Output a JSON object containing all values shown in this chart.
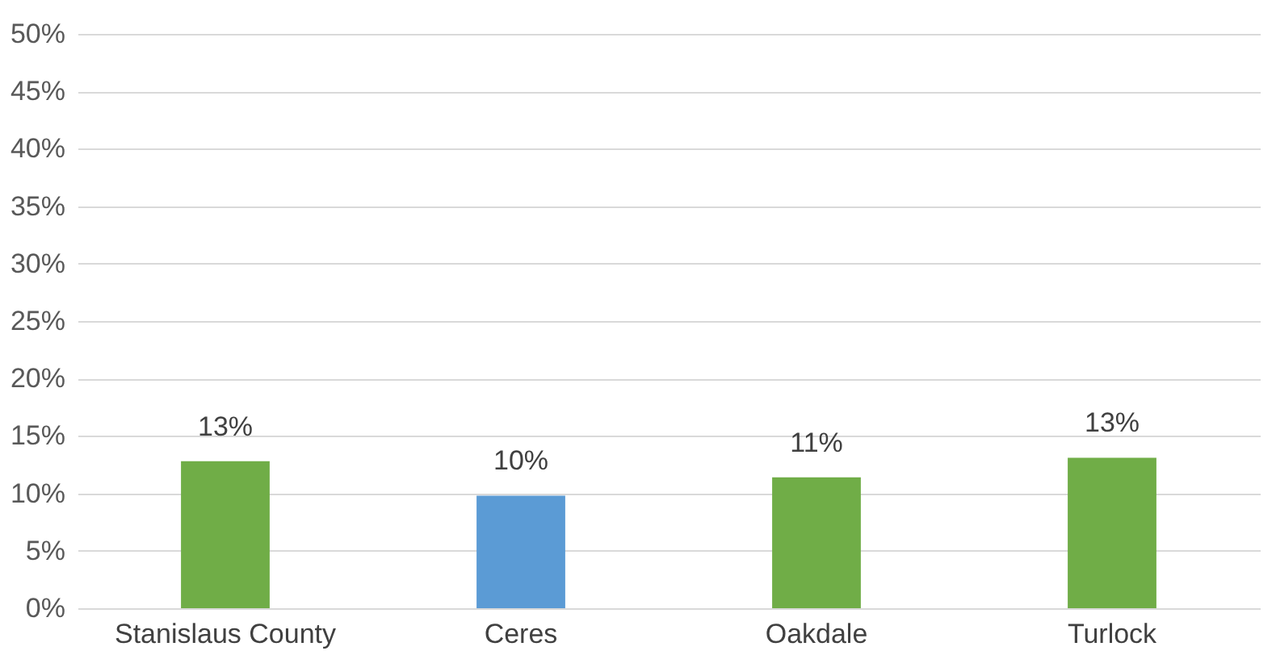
{
  "chart_data": {
    "type": "bar",
    "categories": [
      "Stanislaus County",
      "Ceres",
      "Oakdale",
      "Turlock"
    ],
    "values": [
      12.8,
      9.8,
      11.4,
      13.1
    ],
    "colors": [
      "#70ad47",
      "#5b9bd5",
      "#70ad47",
      "#70ad47"
    ],
    "value_labels": [
      "13%",
      "10%",
      "11%",
      "13%"
    ],
    "ylim": [
      0,
      50
    ],
    "yticks": [
      {
        "value": 0,
        "label": "0%"
      },
      {
        "value": 5,
        "label": "5%"
      },
      {
        "value": 10,
        "label": "10%"
      },
      {
        "value": 15,
        "label": "15%"
      },
      {
        "value": 20,
        "label": "20%"
      },
      {
        "value": 25,
        "label": "25%"
      },
      {
        "value": 30,
        "label": "30%"
      },
      {
        "value": 35,
        "label": "35%"
      },
      {
        "value": 40,
        "label": "40%"
      },
      {
        "value": 45,
        "label": "45%"
      },
      {
        "value": 50,
        "label": "50%"
      }
    ],
    "grid": "y"
  }
}
